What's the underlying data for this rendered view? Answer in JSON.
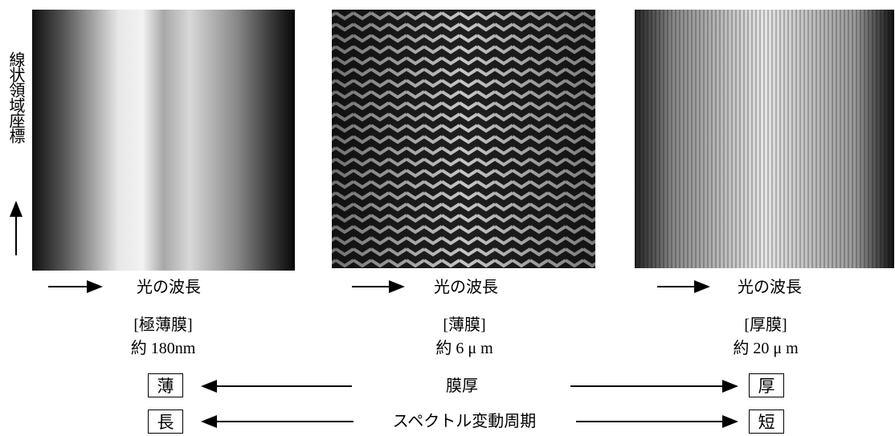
{
  "axis_label": "線状領域座標",
  "panels": [
    {
      "x_label": "光の波長",
      "name": "[極薄膜]",
      "thickness": "約 180nm"
    },
    {
      "x_label": "光の波長",
      "name": "[薄膜]",
      "thickness": "約 6 μ m"
    },
    {
      "x_label": "光の波長",
      "name": "[厚膜]",
      "thickness": "約 20 μ m"
    }
  ],
  "scales": [
    {
      "left": "薄",
      "center": "膜厚",
      "right": "厚"
    },
    {
      "left": "長",
      "center": "スペクトル変動周期",
      "right": "短"
    }
  ]
}
